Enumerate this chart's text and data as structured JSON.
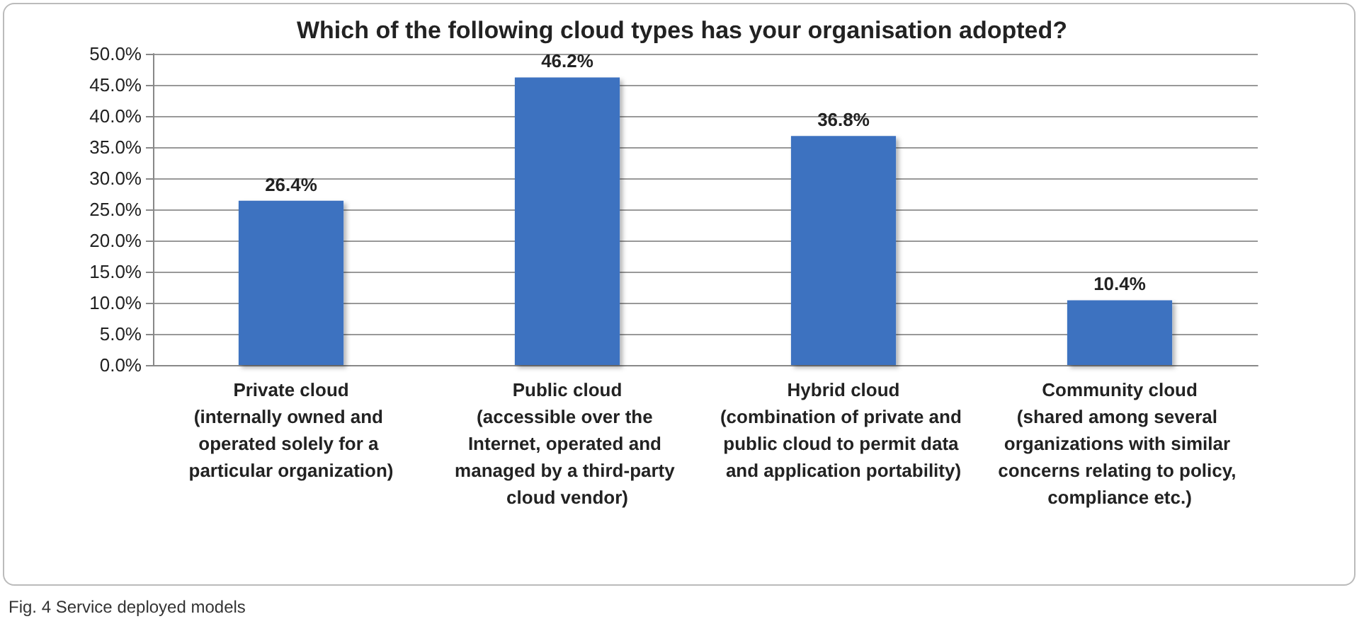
{
  "chart_data": {
    "type": "bar",
    "title": "Which of the following cloud types has your organisation adopted?",
    "categories": [
      "Private cloud\n(internally owned and operated solely for a particular organization)",
      "Public cloud\n(accessible over the Internet, operated and managed by a third-party cloud vendor)",
      "Hybrid cloud\n(combination of private and public cloud to permit data and application portability)",
      "Community cloud\n(shared among several organizations with similar concerns relating to policy, compliance etc.)"
    ],
    "values": [
      26.4,
      46.2,
      36.8,
      10.4
    ],
    "value_labels": [
      "26.4%",
      "46.2%",
      "36.8%",
      "10.4%"
    ],
    "color": "#3d72c0",
    "ylim": [
      0,
      50
    ],
    "yticks": [
      {
        "value": 0,
        "label": "0.0%"
      },
      {
        "value": 5,
        "label": "5.0%"
      },
      {
        "value": 10,
        "label": "10.0%"
      },
      {
        "value": 15,
        "label": "15.0%"
      },
      {
        "value": 20,
        "label": "20.0%"
      },
      {
        "value": 25,
        "label": "25.0%"
      },
      {
        "value": 30,
        "label": "30.0%"
      },
      {
        "value": 35,
        "label": "35.0%"
      },
      {
        "value": 40,
        "label": "40.0%"
      },
      {
        "value": 45,
        "label": "45.0%"
      },
      {
        "value": 50,
        "label": "50.0%"
      }
    ],
    "grid": "y",
    "annotations": [
      "Fig. 4 Service deployed models"
    ]
  }
}
